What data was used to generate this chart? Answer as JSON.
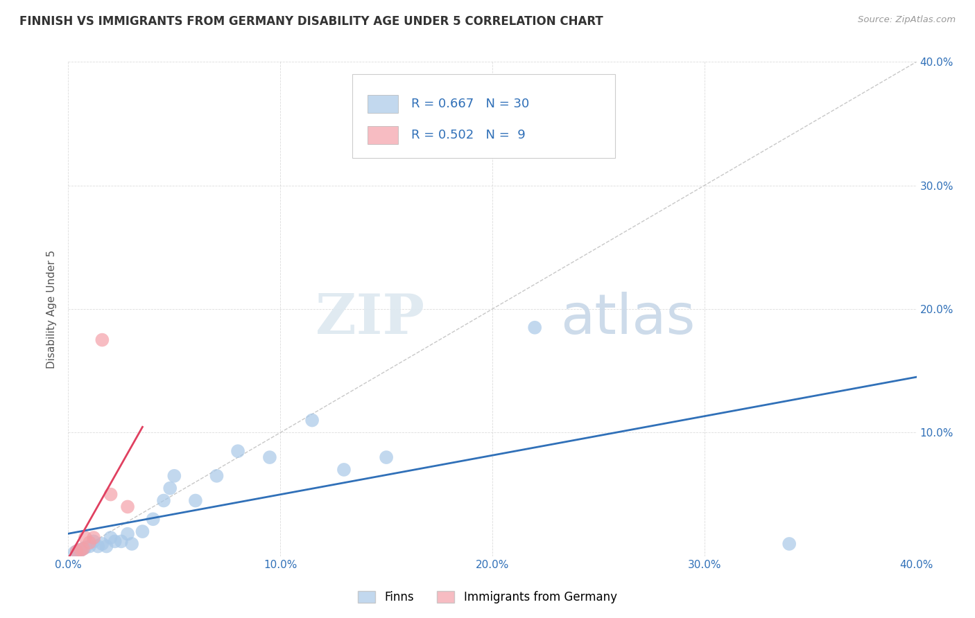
{
  "title": "FINNISH VS IMMIGRANTS FROM GERMANY DISABILITY AGE UNDER 5 CORRELATION CHART",
  "source": "Source: ZipAtlas.com",
  "ylabel": "Disability Age Under 5",
  "watermark_zip": "ZIP",
  "watermark_atlas": "atlas",
  "xlim": [
    0.0,
    0.4
  ],
  "ylim": [
    0.0,
    0.4
  ],
  "xtick_vals": [
    0.0,
    0.1,
    0.2,
    0.3,
    0.4
  ],
  "ytick_vals": [
    0.0,
    0.1,
    0.2,
    0.3,
    0.4
  ],
  "finns_R": 0.667,
  "finns_N": 30,
  "immigrants_R": 0.502,
  "immigrants_N": 9,
  "finns_color": "#a8c8e8",
  "immigrants_color": "#f4a0a8",
  "trendline_finns_color": "#3070b8",
  "trendline_immigrants_color": "#e04060",
  "finns_x": [
    0.003,
    0.004,
    0.005,
    0.006,
    0.007,
    0.008,
    0.01,
    0.012,
    0.014,
    0.016,
    0.018,
    0.02,
    0.022,
    0.025,
    0.028,
    0.03,
    0.035,
    0.04,
    0.045,
    0.048,
    0.05,
    0.06,
    0.07,
    0.08,
    0.095,
    0.115,
    0.13,
    0.15,
    0.22,
    0.34
  ],
  "finns_y": [
    0.003,
    0.004,
    0.005,
    0.005,
    0.006,
    0.007,
    0.008,
    0.012,
    0.008,
    0.01,
    0.008,
    0.015,
    0.012,
    0.012,
    0.018,
    0.01,
    0.02,
    0.03,
    0.045,
    0.055,
    0.065,
    0.045,
    0.065,
    0.085,
    0.08,
    0.11,
    0.07,
    0.08,
    0.185,
    0.01
  ],
  "immigrants_x": [
    0.004,
    0.006,
    0.007,
    0.008,
    0.01,
    0.012,
    0.016,
    0.02,
    0.028
  ],
  "immigrants_y": [
    0.004,
    0.005,
    0.006,
    0.015,
    0.011,
    0.015,
    0.175,
    0.05,
    0.04
  ],
  "background_color": "#ffffff",
  "grid_color": "#cccccc"
}
